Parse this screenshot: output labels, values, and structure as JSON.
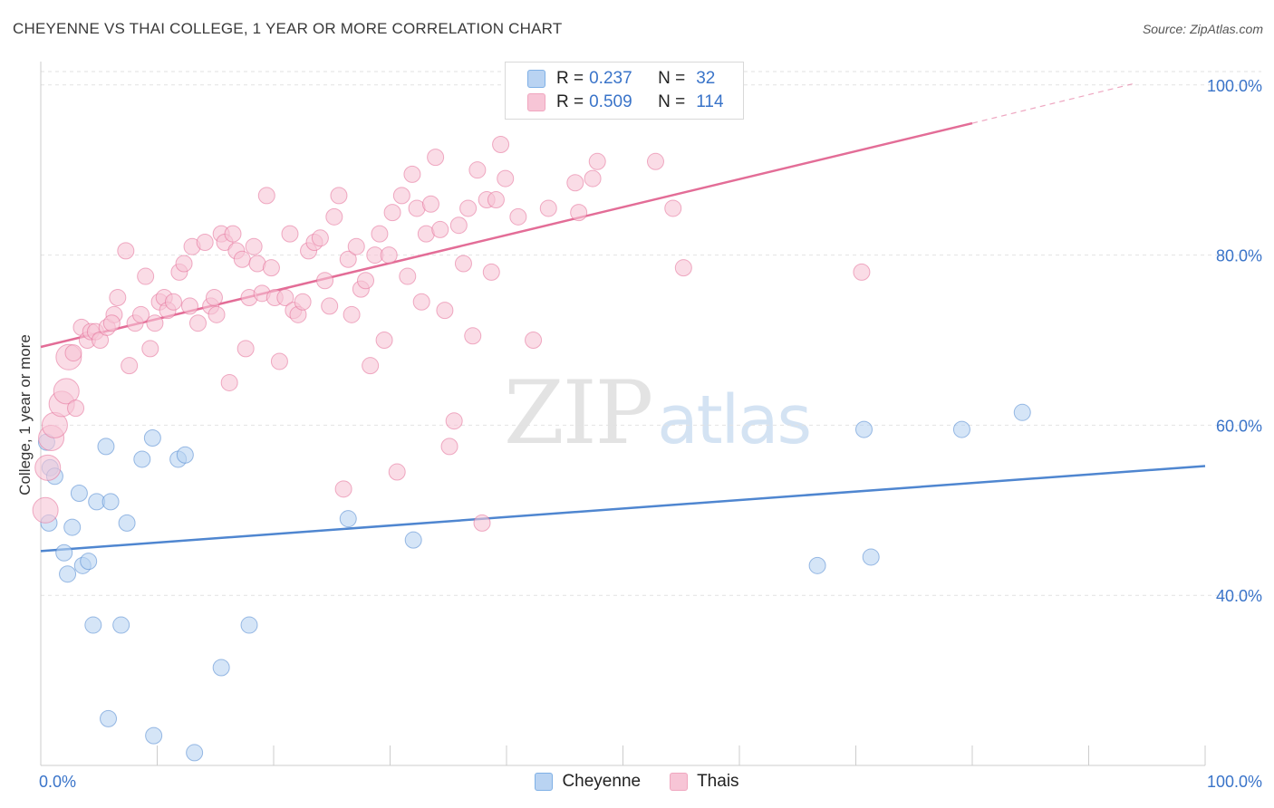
{
  "title": "CHEYENNE VS THAI COLLEGE, 1 YEAR OR MORE CORRELATION CHART",
  "source": "Source: ZipAtlas.com",
  "watermark": {
    "zip": "ZIP",
    "atlas": "atlas"
  },
  "legend": {
    "r_label": "R =",
    "n_label": "N =",
    "rows": [
      {
        "name": "Cheyenne",
        "r": "0.237",
        "n": "32",
        "color": "#7fb0e6"
      },
      {
        "name": "Thais",
        "r": "0.509",
        "n": "114",
        "color": "#f0a6bf"
      }
    ]
  },
  "chart_data": {
    "type": "scatter",
    "title": "CHEYENNE VS THAI COLLEGE, 1 YEAR OR MORE CORRELATION CHART",
    "xlabel": "",
    "ylabel": "College, 1 year or more",
    "xlim": [
      0,
      100
    ],
    "ylim": [
      20,
      102
    ],
    "x_tick_labels": [
      "0.0%",
      "100.0%"
    ],
    "y_ticks": [
      40,
      60,
      80,
      100
    ],
    "y_tick_labels": [
      "40.0%",
      "60.0%",
      "80.0%",
      "100.0%"
    ],
    "grid": true,
    "series": [
      {
        "name": "Cheyenne",
        "color": "#4f86d0",
        "fill": "#b9d3f2",
        "trend": {
          "x": [
            0,
            100
          ],
          "y": [
            45.2,
            55.2
          ]
        },
        "points": [
          [
            0.5,
            58
          ],
          [
            0.8,
            55
          ],
          [
            1.2,
            54
          ],
          [
            0.7,
            48.5
          ],
          [
            2.7,
            48
          ],
          [
            3.3,
            52
          ],
          [
            2.0,
            45
          ],
          [
            2.3,
            42.5
          ],
          [
            3.6,
            43.5
          ],
          [
            4.1,
            44
          ],
          [
            4.8,
            51
          ],
          [
            6.0,
            51
          ],
          [
            5.6,
            57.5
          ],
          [
            9.6,
            58.5
          ],
          [
            8.7,
            56
          ],
          [
            11.8,
            56
          ],
          [
            12.4,
            56.5
          ],
          [
            7.4,
            48.5
          ],
          [
            4.5,
            36.5
          ],
          [
            6.9,
            36.5
          ],
          [
            17.9,
            36.5
          ],
          [
            15.5,
            31.5
          ],
          [
            5.8,
            25.5
          ],
          [
            9.7,
            23.5
          ],
          [
            13.2,
            21.5
          ],
          [
            26.4,
            49
          ],
          [
            32.0,
            46.5
          ],
          [
            66.7,
            43.5
          ],
          [
            71.3,
            44.5
          ],
          [
            70.7,
            59.5
          ],
          [
            79.1,
            59.5
          ],
          [
            84.3,
            61.5
          ]
        ]
      },
      {
        "name": "Thais",
        "color": "#e36d97",
        "fill": "#f7c5d6",
        "trend": {
          "x": [
            0,
            80
          ],
          "y": [
            69.2,
            95.5
          ]
        },
        "trend_dash": {
          "x": [
            80,
            94
          ],
          "y": [
            95.5,
            100.2
          ]
        },
        "points": [
          [
            0.4,
            50
          ],
          [
            0.6,
            55
          ],
          [
            0.9,
            58.5
          ],
          [
            1.2,
            60
          ],
          [
            1.8,
            62.5
          ],
          [
            2.2,
            64
          ],
          [
            3.0,
            62
          ],
          [
            2.4,
            68
          ],
          [
            2.8,
            68.5
          ],
          [
            3.5,
            71.5
          ],
          [
            4.0,
            70
          ],
          [
            4.3,
            71
          ],
          [
            4.7,
            71
          ],
          [
            5.1,
            70
          ],
          [
            5.7,
            71.5
          ],
          [
            6.3,
            73
          ],
          [
            6.1,
            72
          ],
          [
            6.6,
            75
          ],
          [
            7.3,
            80.5
          ],
          [
            7.6,
            67
          ],
          [
            8.1,
            72
          ],
          [
            8.6,
            73
          ],
          [
            9.0,
            77.5
          ],
          [
            9.4,
            69
          ],
          [
            9.8,
            72
          ],
          [
            10.2,
            74.5
          ],
          [
            10.6,
            75
          ],
          [
            10.9,
            73.5
          ],
          [
            11.4,
            74.5
          ],
          [
            11.9,
            78
          ],
          [
            12.3,
            79
          ],
          [
            12.8,
            74
          ],
          [
            13.0,
            81
          ],
          [
            13.5,
            72
          ],
          [
            14.1,
            81.5
          ],
          [
            14.6,
            74
          ],
          [
            14.9,
            75
          ],
          [
            15.1,
            73
          ],
          [
            15.5,
            82.5
          ],
          [
            15.8,
            81.5
          ],
          [
            16.2,
            65
          ],
          [
            16.5,
            82.5
          ],
          [
            16.8,
            80.5
          ],
          [
            17.3,
            79.5
          ],
          [
            17.6,
            69
          ],
          [
            17.9,
            75
          ],
          [
            18.3,
            81
          ],
          [
            18.6,
            79
          ],
          [
            19.0,
            75.5
          ],
          [
            19.4,
            87
          ],
          [
            19.8,
            78.5
          ],
          [
            20.1,
            75
          ],
          [
            20.5,
            67.5
          ],
          [
            21.0,
            75
          ],
          [
            21.4,
            82.5
          ],
          [
            21.7,
            73.5
          ],
          [
            22.1,
            73
          ],
          [
            22.5,
            74.5
          ],
          [
            23.0,
            80.5
          ],
          [
            23.5,
            81.5
          ],
          [
            24.0,
            82
          ],
          [
            24.4,
            77
          ],
          [
            24.8,
            74
          ],
          [
            25.2,
            84.5
          ],
          [
            25.6,
            87
          ],
          [
            26.0,
            52.5
          ],
          [
            26.4,
            79.5
          ],
          [
            26.7,
            73
          ],
          [
            27.1,
            81
          ],
          [
            27.5,
            76
          ],
          [
            27.9,
            77
          ],
          [
            28.3,
            67
          ],
          [
            28.7,
            80
          ],
          [
            29.1,
            82.5
          ],
          [
            29.5,
            70
          ],
          [
            29.9,
            80
          ],
          [
            30.2,
            85
          ],
          [
            30.6,
            54.5
          ],
          [
            31.0,
            87
          ],
          [
            31.5,
            77.5
          ],
          [
            31.9,
            89.5
          ],
          [
            32.3,
            85.5
          ],
          [
            32.7,
            74.5
          ],
          [
            33.1,
            82.5
          ],
          [
            33.5,
            86
          ],
          [
            33.9,
            91.5
          ],
          [
            34.3,
            83
          ],
          [
            34.7,
            73.5
          ],
          [
            35.1,
            57.5
          ],
          [
            35.5,
            60.5
          ],
          [
            35.9,
            83.5
          ],
          [
            36.3,
            79
          ],
          [
            36.7,
            85.5
          ],
          [
            37.1,
            70.5
          ],
          [
            37.5,
            90
          ],
          [
            37.9,
            48.5
          ],
          [
            38.3,
            86.5
          ],
          [
            38.7,
            78
          ],
          [
            39.1,
            86.5
          ],
          [
            39.5,
            93
          ],
          [
            39.9,
            89
          ],
          [
            41.0,
            84.5
          ],
          [
            42.3,
            70
          ],
          [
            43.6,
            85.5
          ],
          [
            45.9,
            88.5
          ],
          [
            46.2,
            85
          ],
          [
            47.4,
            89
          ],
          [
            47.8,
            91
          ],
          [
            52.8,
            91
          ],
          [
            54.3,
            85.5
          ],
          [
            55.2,
            78.5
          ],
          [
            70.5,
            78
          ]
        ]
      }
    ]
  }
}
